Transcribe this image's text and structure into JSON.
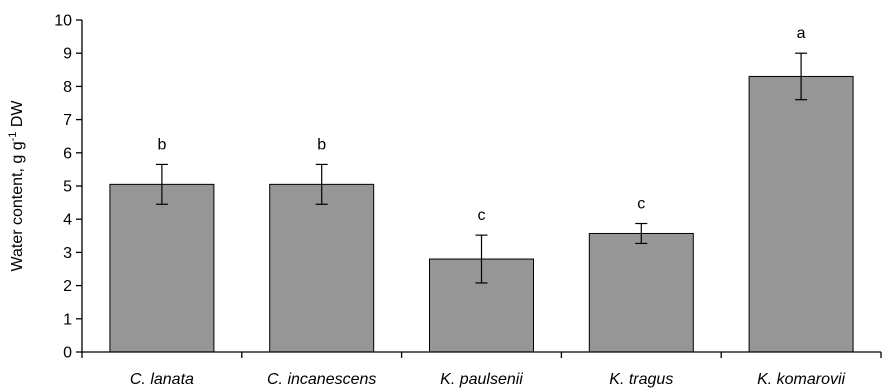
{
  "chart_data": {
    "type": "bar",
    "categories": [
      "C. lanata",
      "C. incanescens",
      "K. paulsenii",
      "K. tragus",
      "K. komarovii"
    ],
    "values": [
      5.05,
      5.05,
      2.8,
      3.57,
      8.3
    ],
    "error": [
      0.6,
      0.6,
      0.72,
      0.3,
      0.7
    ],
    "significance": [
      "b",
      "b",
      "c",
      "c",
      "a"
    ],
    "ylabel_parts": {
      "pre": "Water content, g g",
      "sup": "-1",
      "post": " DW"
    },
    "ylim": [
      0,
      10
    ],
    "yticks": [
      "0",
      "1",
      "2",
      "3",
      "4",
      "5",
      "6",
      "7",
      "8",
      "9",
      "10"
    ],
    "bar_color": "#969696",
    "grid": false,
    "legend": "none"
  }
}
